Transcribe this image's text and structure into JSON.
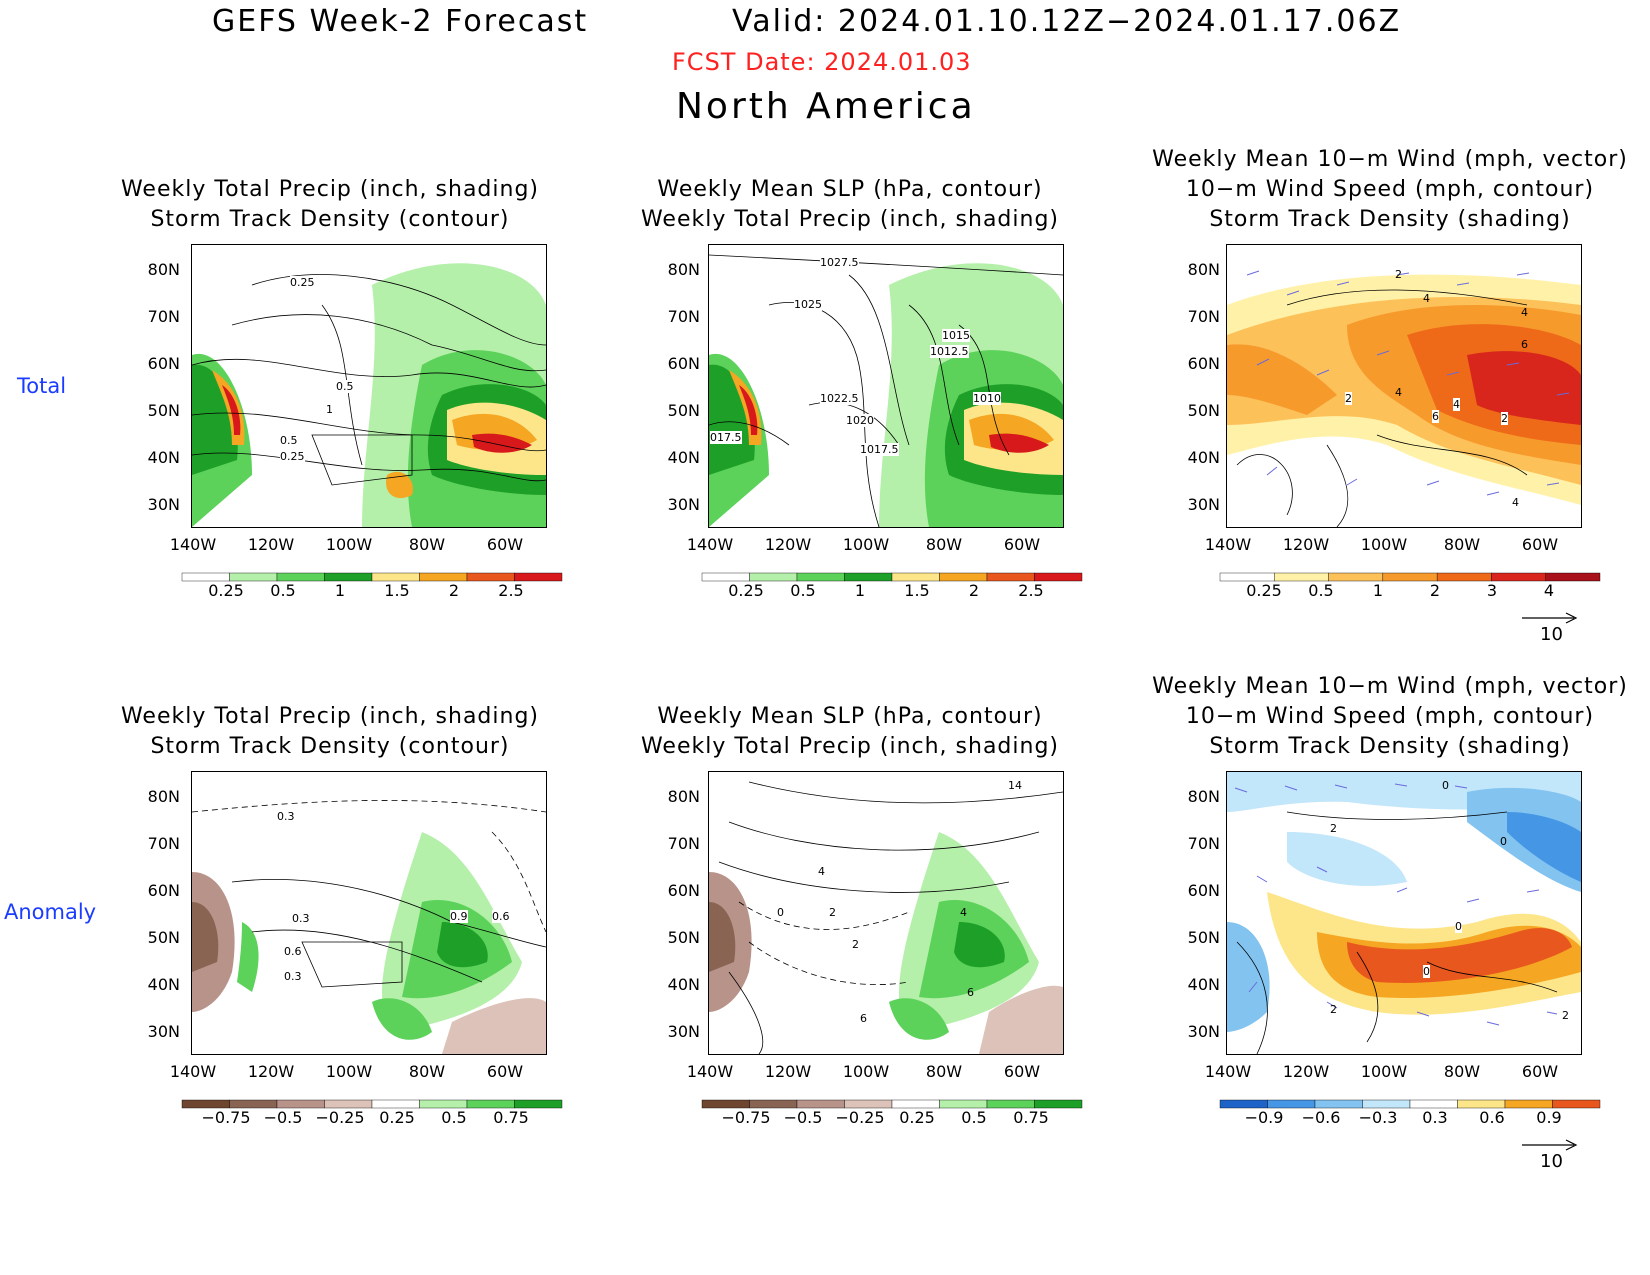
{
  "header": {
    "title": "GEFS Week-2 Forecast",
    "valid": "Valid: 2024.01.10.12Z−2024.01.17.06Z",
    "fcst_date": "FCST Date: 2024.01.03",
    "region": "North America"
  },
  "rows": {
    "total": "Total",
    "anomaly": "Anomaly"
  },
  "panels": [
    {
      "title1": "Weekly Total Precip (inch, shading)",
      "title2": "Storm Track Density (contour)",
      "title3": "",
      "labels": [
        "0.25",
        "0.5",
        "0.5",
        "0.25",
        "1"
      ]
    },
    {
      "title1": "Weekly Mean SLP (hPa, contour)",
      "title2": "Weekly Total Precip (inch, shading)",
      "title3": "",
      "labels": [
        "1027.5",
        "1025",
        "1015",
        "1012.5",
        "1022.5",
        "1020",
        "1017.5",
        "1010",
        "017.5"
      ]
    },
    {
      "title1": "Weekly Mean 10−m Wind (mph, vector)",
      "title2": "10−m Wind Speed (mph, contour)",
      "title3": "Storm Track Density (shading)",
      "labels": [
        "2",
        "4",
        "4",
        "6",
        "2",
        "4",
        "4",
        "6",
        "2",
        "4"
      ]
    },
    {
      "title1": "Weekly Total Precip (inch, shading)",
      "title2": "Storm Track Density (contour)",
      "title3": "",
      "labels": [
        "0.3",
        "0.3",
        "0.6",
        "0.3",
        "0.9",
        "0.6"
      ]
    },
    {
      "title1": "Weekly Mean SLP (hPa, contour)",
      "title2": "Weekly Total Precip (inch, shading)",
      "title3": "",
      "labels": [
        "14",
        "4",
        "0",
        "2",
        "4",
        "2",
        "6",
        "6"
      ]
    },
    {
      "title1": "Weekly Mean 10−m Wind (mph, vector)",
      "title2": "10−m Wind Speed (mph, contour)",
      "title3": "Storm Track Density (shading)",
      "labels": [
        "0",
        "2",
        "0",
        "0",
        "0",
        "2",
        "2"
      ]
    }
  ],
  "axes": {
    "lat_ticks": [
      "80N",
      "70N",
      "60N",
      "50N",
      "40N",
      "30N"
    ],
    "lon_ticks": [
      "140W",
      "120W",
      "100W",
      "80W",
      "60W"
    ]
  },
  "colorbars": {
    "precip_total": {
      "labels": [
        "0.25",
        "0.5",
        "1",
        "1.5",
        "2",
        "2.5"
      ],
      "colors": [
        "#ffffff",
        "#b4f0aa",
        "#5cd25a",
        "#1ea028",
        "#fde68a",
        "#f5a623",
        "#e8571e",
        "#d7191c"
      ]
    },
    "storm_total": {
      "labels": [
        "0.25",
        "0.5",
        "1",
        "2",
        "3",
        "4"
      ],
      "colors": [
        "#ffffff",
        "#fff2a8",
        "#fdc15a",
        "#f79a2c",
        "#ef6a18",
        "#d8261c",
        "#a8101a"
      ]
    },
    "precip_anom": {
      "labels": [
        "−0.75",
        "−0.5",
        "−0.25",
        "0.25",
        "0.5",
        "0.75"
      ],
      "colors": [
        "#6e4630",
        "#8a6452",
        "#b8938a",
        "#dcc2b8",
        "#ffffff",
        "#b4f0aa",
        "#5cd25a",
        "#1ea028"
      ]
    },
    "storm_anom": {
      "labels": [
        "−0.9",
        "−0.6",
        "−0.3",
        "0.3",
        "0.6",
        "0.9"
      ],
      "colors": [
        "#1e64c8",
        "#4696e6",
        "#82c3f0",
        "#c2e6fa",
        "#ffffff",
        "#fde68a",
        "#f5a623",
        "#e8571e"
      ]
    },
    "wind_ref": "10"
  }
}
